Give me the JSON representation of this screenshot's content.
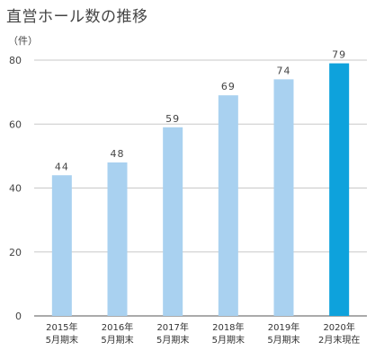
{
  "chart_data": {
    "type": "bar",
    "title": "直営ホール数の推移",
    "unit_label": "（件）",
    "categories": [
      [
        "2015年",
        "5月期末"
      ],
      [
        "2016年",
        "5月期末"
      ],
      [
        "2017年",
        "5月期末"
      ],
      [
        "2018年",
        "5月期末"
      ],
      [
        "2019年",
        "5月期末"
      ],
      [
        "2020年",
        "2月末現在"
      ]
    ],
    "values": [
      44,
      48,
      59,
      69,
      74,
      79
    ],
    "ylim": [
      0,
      80
    ],
    "yticks": [
      0,
      20,
      40,
      60,
      80
    ],
    "grid": true,
    "colors": {
      "bar": "#a9d1f0",
      "highlight": "#0ea2dc",
      "grid": "#c8c8c8",
      "axis": "#555555"
    },
    "highlight_index": 5
  }
}
